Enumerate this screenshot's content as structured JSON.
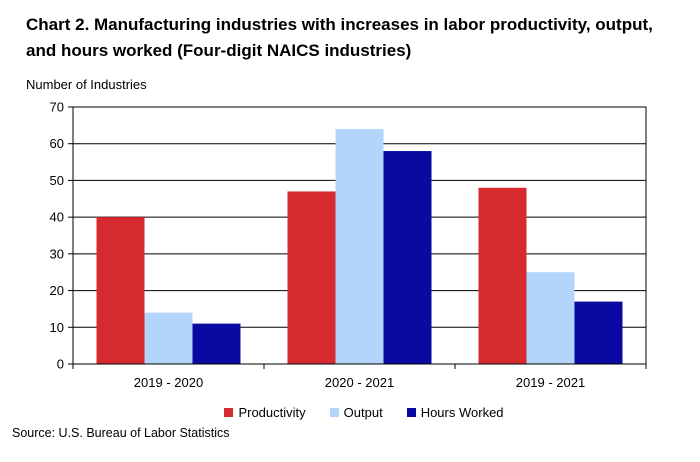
{
  "title": "Chart 2. Manufacturing industries with increases in labor productivity, output, and hours worked (Four-digit NAICS industries)",
  "source": "Source: U.S. Bureau of Labor Statistics",
  "chart_data": {
    "type": "bar",
    "title": "Chart 2. Manufacturing industries with increases in labor productivity, output, and hours worked (Four-digit NAICS industries)",
    "xlabel": "",
    "ylabel": "Number of Industries",
    "ylim": [
      0,
      70
    ],
    "yticks": [
      0,
      10,
      20,
      30,
      40,
      50,
      60,
      70
    ],
    "grid": true,
    "legend_position": "bottom",
    "categories": [
      "2019 - 2020",
      "2020 - 2021",
      "2019 - 2021"
    ],
    "series": [
      {
        "name": "Productivity",
        "color": "#d62a2f",
        "values": [
          40,
          47,
          48
        ]
      },
      {
        "name": "Output",
        "color": "#b3d4fb",
        "values": [
          14,
          64,
          25
        ]
      },
      {
        "name": "Hours Worked",
        "color": "#0a0aa2",
        "values": [
          11,
          58,
          17
        ]
      }
    ]
  }
}
